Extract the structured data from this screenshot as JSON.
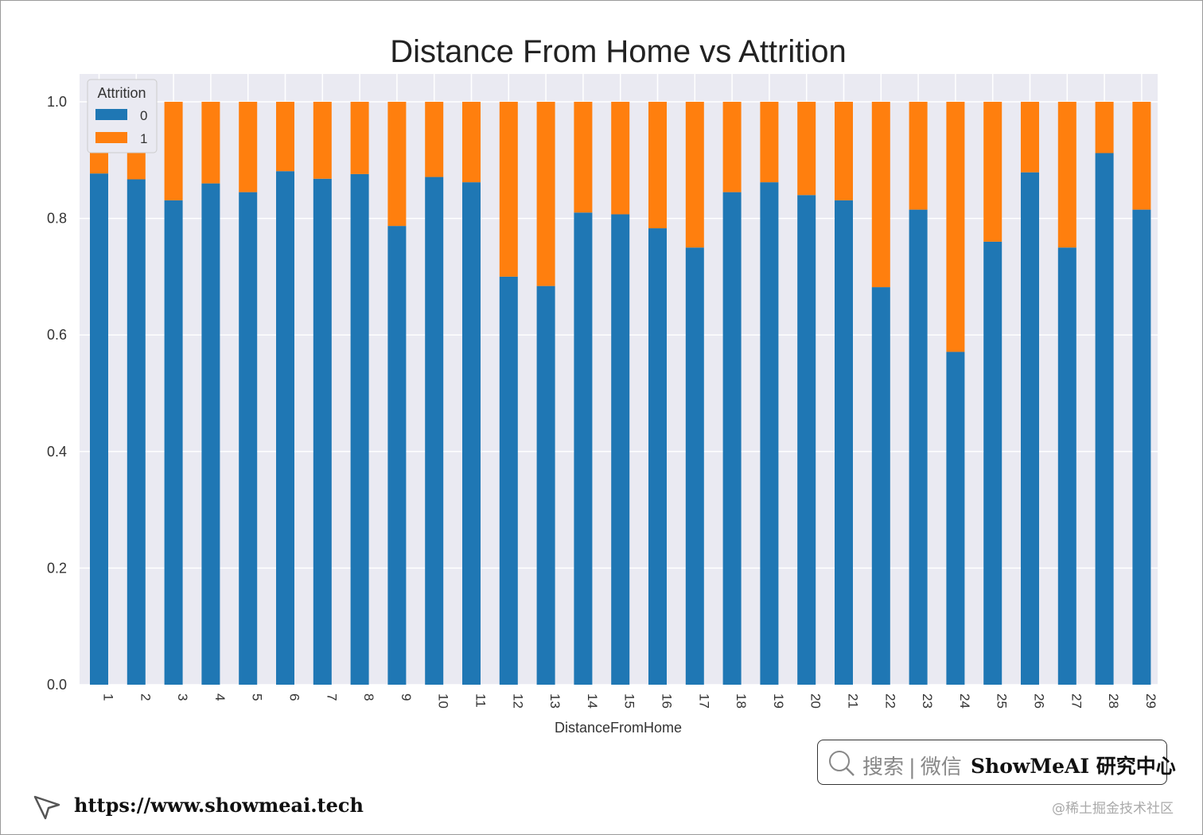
{
  "chart_data": {
    "type": "bar",
    "stacked": true,
    "title": "Distance From Home vs Attrition",
    "xlabel": "DistanceFromHome",
    "ylabel": "",
    "ylim": [
      0,
      1.0
    ],
    "yticks": [
      "0.0",
      "0.2",
      "0.4",
      "0.6",
      "0.8",
      "1.0"
    ],
    "legend": {
      "title": "Attrition",
      "position": "top-left"
    },
    "categories": [
      "1",
      "2",
      "3",
      "4",
      "5",
      "6",
      "7",
      "8",
      "9",
      "10",
      "11",
      "12",
      "13",
      "14",
      "15",
      "16",
      "17",
      "18",
      "19",
      "20",
      "21",
      "22",
      "23",
      "24",
      "25",
      "26",
      "27",
      "28",
      "29"
    ],
    "series": [
      {
        "name": "0",
        "color": "#1f77b4",
        "values": [
          0.877,
          0.867,
          0.831,
          0.86,
          0.845,
          0.881,
          0.868,
          0.876,
          0.787,
          0.871,
          0.862,
          0.7,
          0.684,
          0.81,
          0.807,
          0.783,
          0.75,
          0.845,
          0.862,
          0.84,
          0.831,
          0.682,
          0.815,
          0.571,
          0.76,
          0.879,
          0.75,
          0.912,
          0.815
        ]
      },
      {
        "name": "1",
        "color": "#ff7f0e",
        "values": [
          0.123,
          0.133,
          0.169,
          0.14,
          0.155,
          0.119,
          0.132,
          0.124,
          0.213,
          0.129,
          0.138,
          0.3,
          0.316,
          0.19,
          0.193,
          0.217,
          0.25,
          0.155,
          0.138,
          0.16,
          0.169,
          0.318,
          0.185,
          0.429,
          0.24,
          0.121,
          0.25,
          0.088,
          0.185
        ]
      }
    ]
  },
  "search": {
    "text": "搜索",
    "divider": "|",
    "wechat": "微信",
    "brand": "ShowMeAI 研究中心"
  },
  "footer": {
    "url": "https://www.showmeai.tech",
    "watermark": "@稀土掘金技术社区"
  }
}
